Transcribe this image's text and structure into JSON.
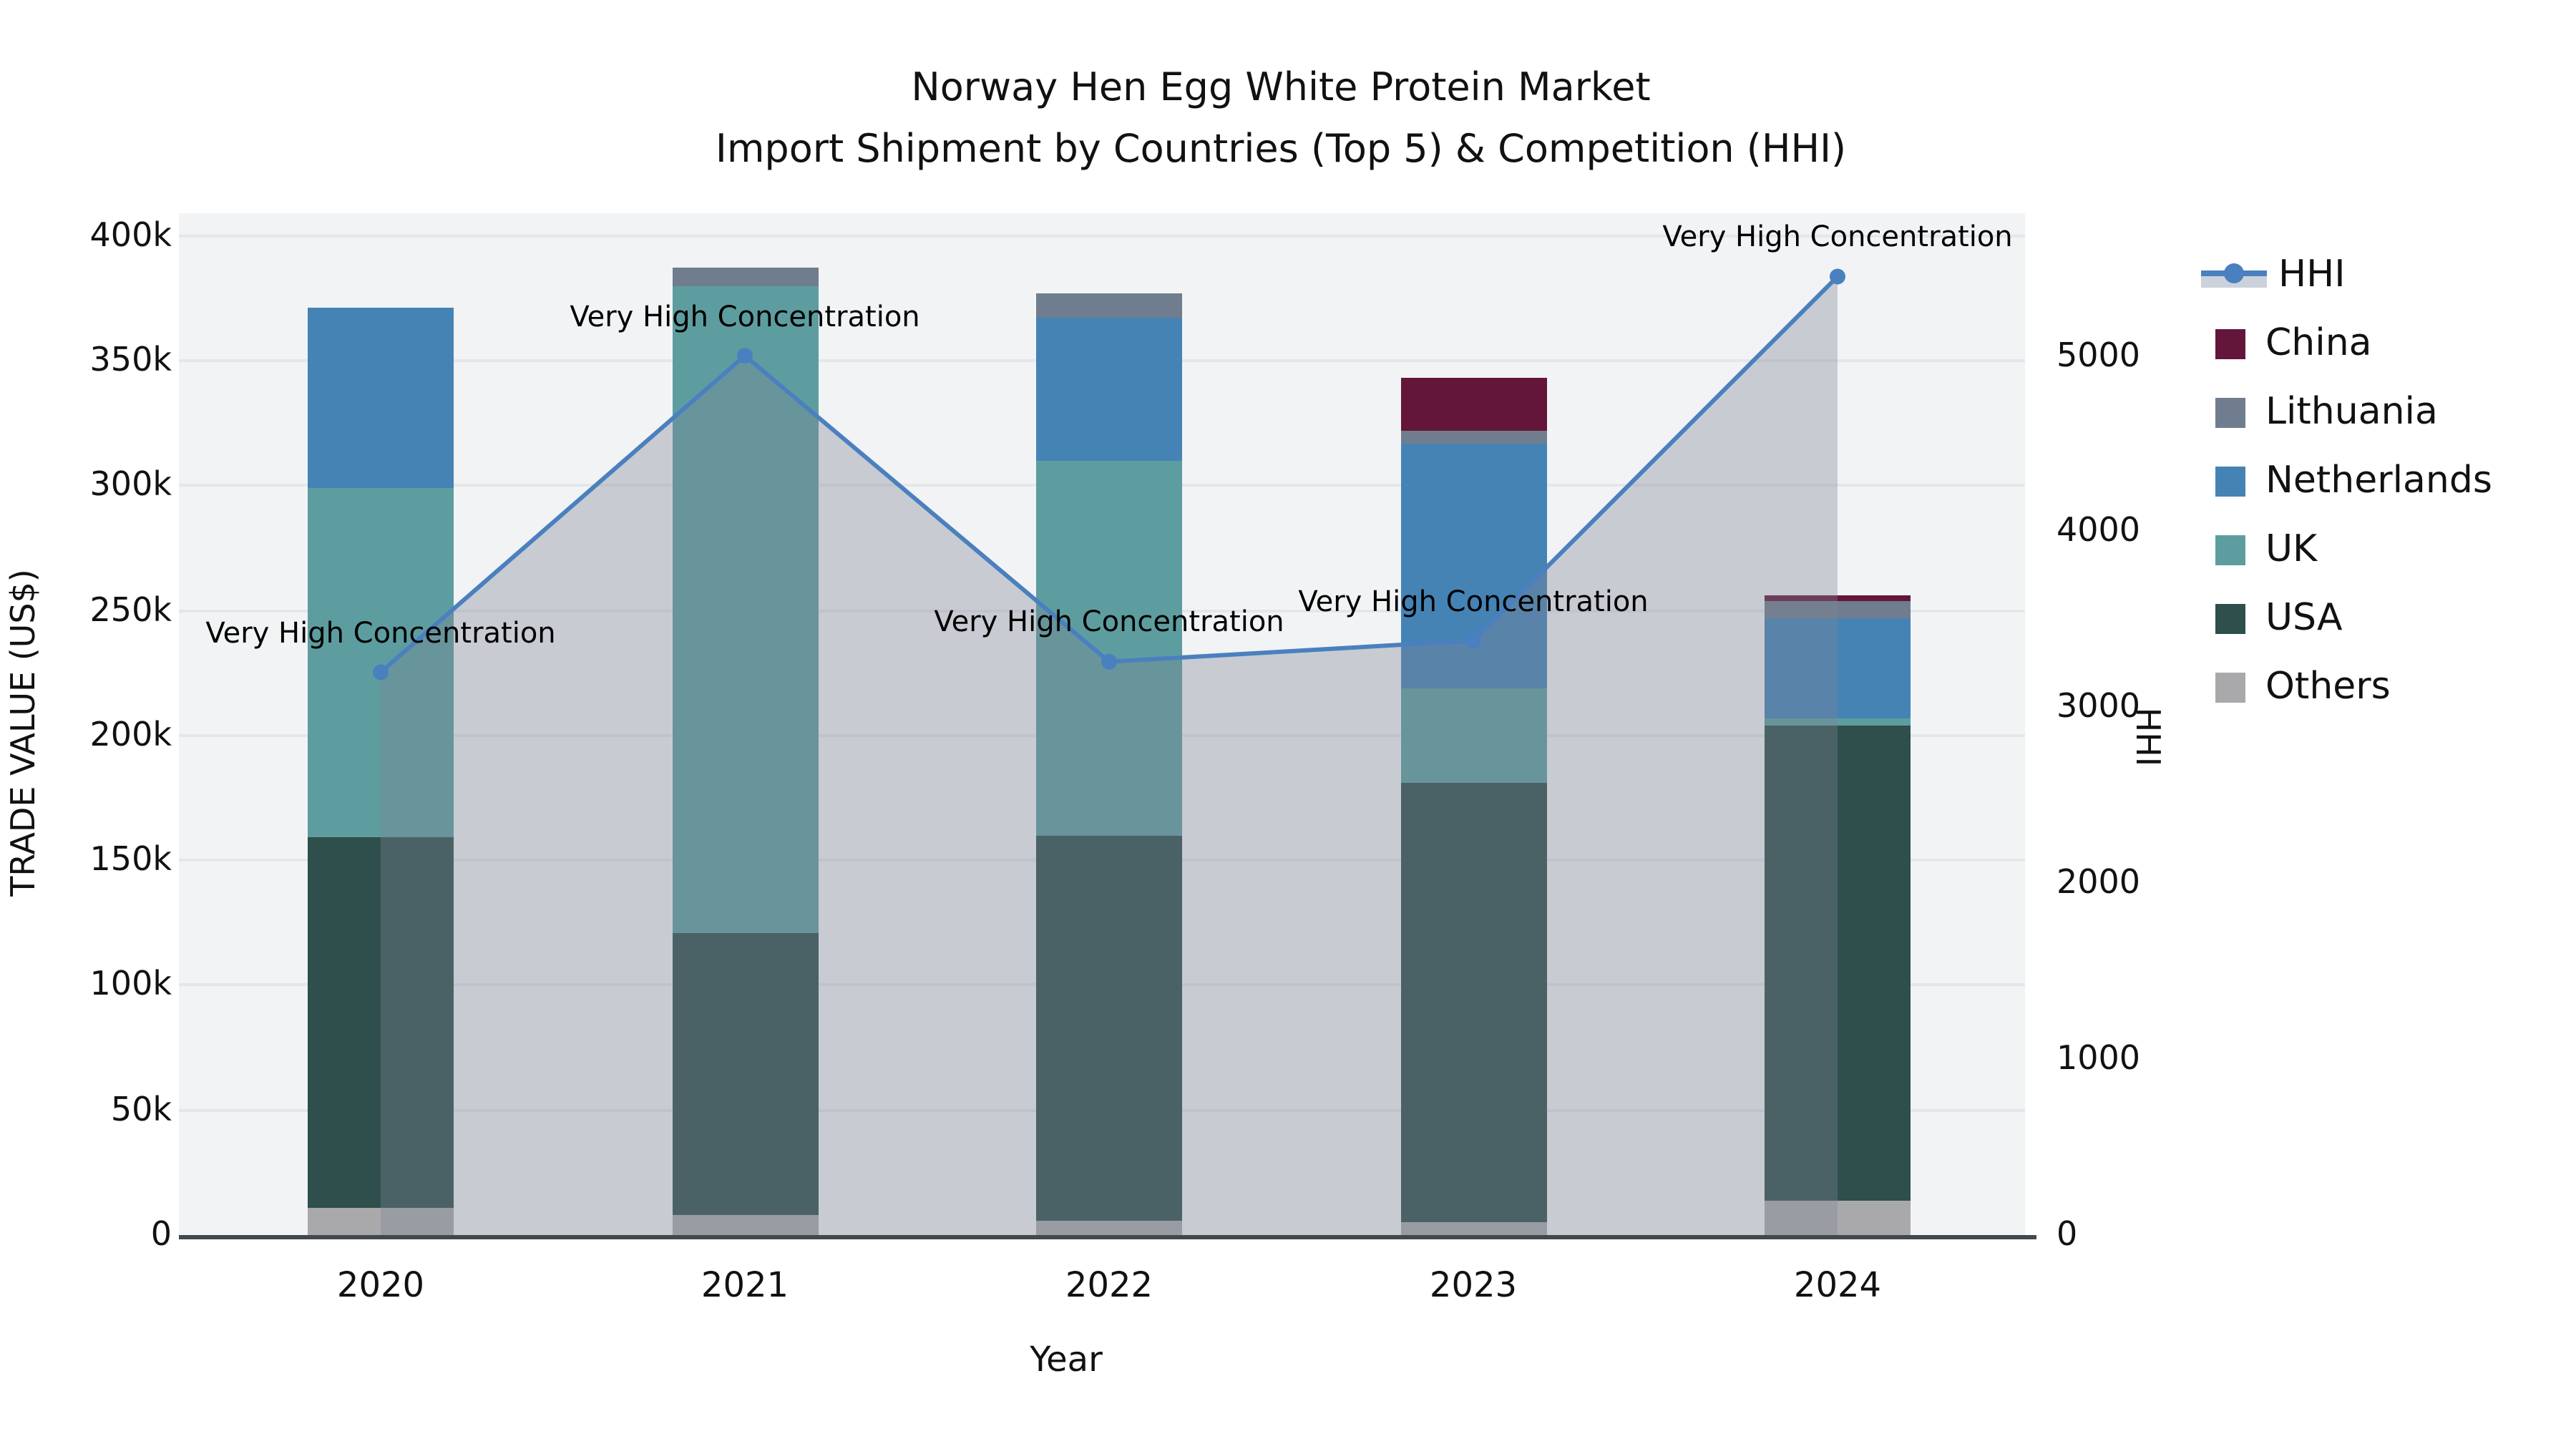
{
  "title": {
    "line1": "Norway Hen Egg White Protein Market",
    "line2": "Import Shipment by Countries (Top 5) & Competition (HHI)"
  },
  "chart_data": {
    "type": "bar+line",
    "title": "Norway Hen Egg White Protein Market Import Shipment by Countries (Top 5) & Competition (HHI)",
    "xlabel": "Year",
    "ylabel_left": "TRADE VALUE (US$)",
    "ylabel_right": "HHI",
    "categories": [
      "2020",
      "2021",
      "2022",
      "2023",
      "2024"
    ],
    "bar_stack_order_bottom_to_top": [
      "Others",
      "USA",
      "UK",
      "Netherlands",
      "Lithuania",
      "China"
    ],
    "bar_series": [
      {
        "name": "Others",
        "color": "#a9a9ab",
        "values": [
          11000,
          8000,
          6000,
          5000,
          14000
        ]
      },
      {
        "name": "USA",
        "color": "#2e4f4b",
        "values": [
          148000,
          113000,
          154000,
          176000,
          190000
        ]
      },
      {
        "name": "UK",
        "color": "#5d9da0",
        "values": [
          140000,
          259000,
          150000,
          38000,
          3000
        ]
      },
      {
        "name": "Netherlands",
        "color": "#4583b5",
        "values": [
          72000,
          0,
          57000,
          98000,
          40000
        ]
      },
      {
        "name": "Lithuania",
        "color": "#6f7d8e",
        "values": [
          0,
          7000,
          10000,
          5000,
          7000
        ]
      },
      {
        "name": "China",
        "color": "#63163a",
        "values": [
          0,
          0,
          0,
          21000,
          2000
        ]
      }
    ],
    "line_series": {
      "name": "HHI",
      "axis": "right",
      "color": "#4a80bf",
      "area_fill": "rgba(126,134,150,0.36)",
      "values": [
        3200,
        5000,
        3260,
        3380,
        5450
      ]
    },
    "annotations": [
      {
        "category": "2020",
        "text": "Very High Concentration"
      },
      {
        "category": "2021",
        "text": "Very High Concentration"
      },
      {
        "category": "2022",
        "text": "Very High Concentration"
      },
      {
        "category": "2023",
        "text": "Very High Concentration"
      },
      {
        "category": "2024",
        "text": "Very High Concentration"
      }
    ],
    "yaxis_left": {
      "max": 409000,
      "tick_values": [
        0,
        50000,
        100000,
        150000,
        200000,
        250000,
        300000,
        350000,
        400000
      ],
      "tick_labels": [
        "0",
        "50k",
        "100k",
        "150k",
        "200k",
        "250k",
        "300k",
        "350k",
        "400k"
      ]
    },
    "yaxis_right": {
      "max": 5810,
      "tick_values": [
        0,
        1000,
        2000,
        3000,
        4000,
        5000
      ],
      "tick_labels": [
        "0",
        "1000",
        "2000",
        "3000",
        "4000",
        "5000"
      ]
    },
    "legend": [
      "HHI",
      "China",
      "Lithuania",
      "Netherlands",
      "UK",
      "USA",
      "Others"
    ],
    "grid": true,
    "legend_position": "right"
  }
}
